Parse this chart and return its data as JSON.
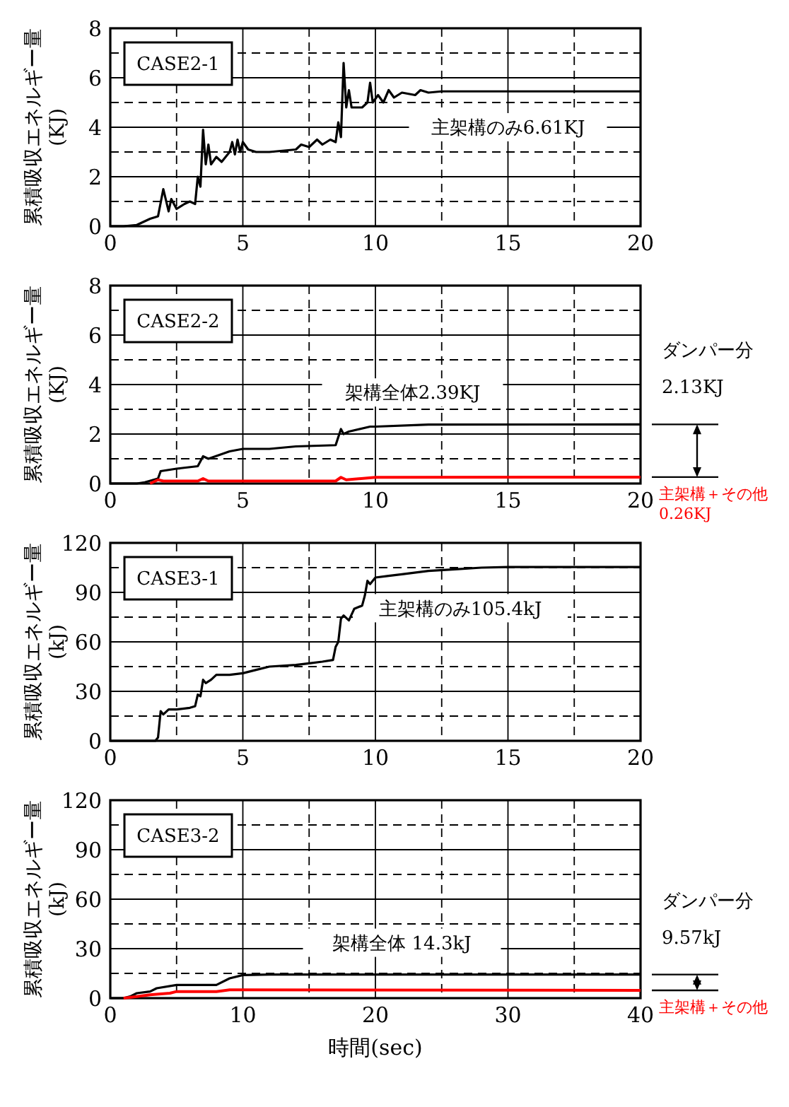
{
  "chart_data": [
    {
      "type": "line",
      "ylabel": "累積吸収エネルギー量\n(KJ)",
      "xlim": [
        0,
        20
      ],
      "ylim": [
        0,
        8
      ],
      "grid": true,
      "marker": "none",
      "line_style": "solid",
      "xticks": [
        0,
        {
          "value": 2.5,
          "label": null
        },
        5,
        {
          "value": 7.5,
          "label": null
        },
        10,
        {
          "value": 12.5,
          "label": null
        },
        15,
        {
          "value": 17.5,
          "label": null
        },
        20
      ],
      "yticks": [
        0,
        {
          "value": 1,
          "label": null
        },
        2,
        {
          "value": 3,
          "label": null
        },
        4,
        {
          "value": 5,
          "label": null
        },
        6,
        {
          "value": 7,
          "label": null
        },
        8
      ],
      "annotations": [
        "CASE2-1",
        "主架構のみ6.61KJ"
      ],
      "series": [
        {
          "color": "#000000",
          "x": [
            0,
            0.5,
            1,
            1.5,
            1.8,
            2.0,
            2.2,
            2.3,
            2.5,
            2.8,
            3.0,
            3.2,
            3.3,
            3.4,
            3.5,
            3.6,
            3.7,
            3.8,
            4.0,
            4.2,
            4.5,
            4.6,
            4.7,
            4.8,
            4.9,
            5.0,
            5.2,
            5.5,
            6.0,
            6.5,
            7.0,
            7.2,
            7.5,
            7.8,
            8.0,
            8.3,
            8.5,
            8.6,
            8.7,
            8.8,
            8.9,
            9.0,
            9.1,
            9.5,
            9.7,
            9.8,
            9.9,
            10.1,
            10.3,
            10.5,
            10.7,
            11,
            11.5,
            11.7,
            12,
            12.5,
            15,
            20
          ],
          "values": [
            0,
            0,
            0.05,
            0.3,
            0.4,
            1.5,
            0.6,
            1.1,
            0.7,
            0.9,
            1.0,
            0.9,
            2.0,
            1.6,
            3.9,
            2.5,
            3.3,
            2.5,
            2.8,
            2.6,
            3.0,
            3.4,
            2.9,
            3.5,
            3.0,
            3.4,
            3.1,
            3.0,
            3.0,
            3.05,
            3.1,
            3.3,
            3.2,
            3.5,
            3.3,
            3.5,
            3.4,
            4.2,
            3.6,
            6.6,
            4.8,
            5.5,
            4.8,
            4.8,
            5.0,
            5.8,
            5.0,
            5.3,
            5.0,
            5.5,
            5.2,
            5.4,
            5.3,
            5.5,
            5.4,
            5.45,
            5.45,
            5.45
          ]
        }
      ]
    },
    {
      "type": "line",
      "ylabel": "累積吸収エネルギー量\n(KJ)",
      "xlim": [
        0,
        20
      ],
      "ylim": [
        0,
        8
      ],
      "grid": true,
      "marker": "none",
      "line_style": "solid",
      "xticks": [
        0,
        {
          "value": 2.5,
          "label": null
        },
        5,
        {
          "value": 7.5,
          "label": null
        },
        10,
        {
          "value": 12.5,
          "label": null
        },
        15,
        {
          "value": 17.5,
          "label": null
        },
        20
      ],
      "yticks": [
        0,
        {
          "value": 1,
          "label": null
        },
        2,
        {
          "value": 3,
          "label": null
        },
        4,
        {
          "value": 5,
          "label": null
        },
        6,
        {
          "value": 7,
          "label": null
        },
        8
      ],
      "annotations": [
        "CASE2-2",
        "架構全体2.39KJ",
        "ダンパー分\n2.13KJ"
      ],
      "series": [
        {
          "color": "#000000",
          "x": [
            0,
            1,
            1.3,
            1.8,
            1.9,
            2.5,
            3.3,
            3.5,
            3.7,
            4.5,
            5,
            6,
            7,
            8.5,
            8.7,
            8.8,
            9,
            9.8,
            10,
            12,
            20
          ],
          "values": [
            0,
            0,
            0.05,
            0.2,
            0.5,
            0.6,
            0.7,
            1.1,
            1.0,
            1.3,
            1.4,
            1.4,
            1.5,
            1.55,
            2.2,
            2.0,
            2.1,
            2.3,
            2.3,
            2.38,
            2.39
          ]
        },
        {
          "name": "主架構＋その他0.26KJ",
          "color": "#ff0000",
          "x": [
            1.5,
            1.8,
            2,
            3.3,
            3.5,
            3.7,
            8.5,
            8.7,
            8.9,
            10,
            20
          ],
          "values": [
            0,
            0.15,
            0.1,
            0.1,
            0.2,
            0.1,
            0.1,
            0.25,
            0.15,
            0.25,
            0.26
          ]
        }
      ]
    },
    {
      "type": "line",
      "ylabel": "累積吸収エネルギー量\n(kJ)",
      "xlim": [
        0,
        20
      ],
      "ylim": [
        0,
        120
      ],
      "grid": true,
      "marker": "none",
      "line_style": "solid",
      "xticks": [
        0,
        {
          "value": 2.5,
          "label": null
        },
        5,
        {
          "value": 7.5,
          "label": null
        },
        10,
        {
          "value": 12.5,
          "label": null
        },
        15,
        {
          "value": 17.5,
          "label": null
        },
        20
      ],
      "yticks": [
        0,
        {
          "value": 15,
          "label": null
        },
        30,
        {
          "value": 45,
          "label": null
        },
        60,
        {
          "value": 75,
          "label": null
        },
        90,
        {
          "value": 105,
          "label": null
        },
        120
      ],
      "annotations": [
        "CASE3-1",
        "主架構のみ105.4kJ"
      ],
      "series": [
        {
          "color": "#000000",
          "x": [
            0,
            1,
            1.7,
            1.8,
            1.9,
            2.0,
            2.2,
            2.5,
            3.0,
            3.2,
            3.3,
            3.4,
            3.5,
            3.6,
            3.8,
            4.0,
            4.5,
            5,
            5.5,
            6,
            7,
            7.5,
            8,
            8.4,
            8.5,
            8.6,
            8.7,
            8.8,
            9.0,
            9.2,
            9.5,
            9.6,
            9.7,
            9.8,
            10,
            10.5,
            11,
            12,
            13,
            14,
            15,
            20
          ],
          "values": [
            0,
            0,
            0,
            2,
            18,
            16,
            19,
            19,
            20,
            21,
            28,
            27,
            37,
            35,
            37,
            40,
            40,
            41,
            43,
            45,
            46,
            47,
            48,
            49,
            57,
            60,
            74,
            76,
            73,
            80,
            82,
            88,
            97,
            95,
            99,
            100,
            101,
            103,
            104,
            105,
            105.4,
            105.4
          ]
        }
      ]
    },
    {
      "type": "line",
      "ylabel": "累積吸収エネルギー量\n(kJ)",
      "xlabel": "時間(sec)",
      "xlim": [
        0,
        40
      ],
      "ylim": [
        0,
        120
      ],
      "grid": true,
      "marker": "none",
      "line_style": "solid",
      "xticks": [
        0,
        {
          "value": 5,
          "label": null
        },
        10,
        {
          "value": 15,
          "label": null
        },
        20,
        {
          "value": 25,
          "label": null
        },
        30,
        {
          "value": 35,
          "label": null
        },
        40
      ],
      "yticks": [
        0,
        {
          "value": 15,
          "label": null
        },
        30,
        {
          "value": 45,
          "label": null
        },
        60,
        {
          "value": 75,
          "label": null
        },
        90,
        {
          "value": 105,
          "label": null
        },
        120
      ],
      "annotations": [
        "CASE3-2",
        "架構全体 14.3kJ",
        "ダンパー分\n9.57kJ"
      ],
      "series": [
        {
          "color": "#000000",
          "x": [
            0,
            1,
            1.5,
            2,
            3,
            3.5,
            5,
            8,
            9,
            10,
            12,
            40
          ],
          "values": [
            0,
            0,
            1,
            3,
            4,
            6,
            8,
            8,
            12,
            14,
            14.3,
            14.3
          ]
        },
        {
          "name": "主架構＋その他",
          "color": "#ff0000",
          "x": [
            1,
            2,
            3,
            4.5,
            5,
            8,
            9,
            10,
            40
          ],
          "values": [
            0,
            1,
            2,
            3,
            4,
            4,
            5,
            5,
            4.73
          ]
        }
      ]
    }
  ]
}
